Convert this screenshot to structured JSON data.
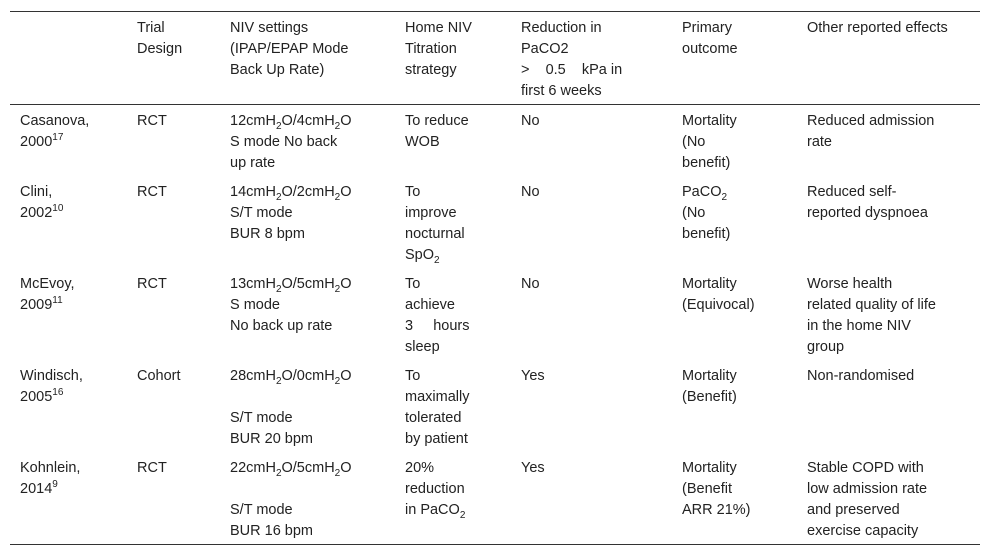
{
  "table": {
    "header": [
      [
        "Trial",
        "Design"
      ],
      [
        "NIV settings",
        "(IPAP/EPAP Mode",
        "Back Up Rate)"
      ],
      [
        "Home NIV",
        "Titration",
        "strategy"
      ],
      [
        "Reduction in",
        "PaCO2",
        ">    0.5    kPa in",
        "first 6 weeks"
      ],
      [
        "Primary",
        "outcome"
      ],
      [
        "Other reported effects"
      ]
    ],
    "rows": [
      [
        [
          [
            "Casanova,"
          ],
          [
            "2000",
            {
              "sup": "17"
            }
          ]
        ],
        [
          [
            "RCT"
          ]
        ],
        [
          [
            "12cmH",
            {
              "sub": "2"
            },
            "O/4cmH",
            {
              "sub": "2"
            },
            "O"
          ],
          [
            "S mode No back"
          ],
          [
            "up rate"
          ]
        ],
        [
          [
            "To reduce"
          ],
          [
            "WOB"
          ]
        ],
        [
          [
            "No"
          ]
        ],
        [
          [
            "Mortality"
          ],
          [
            "(No"
          ],
          [
            "benefit)"
          ]
        ],
        [
          [
            "Reduced admission"
          ],
          [
            "rate"
          ]
        ]
      ],
      [
        [
          [
            "Clini,"
          ],
          [
            "2002",
            {
              "sup": "10"
            }
          ]
        ],
        [
          [
            "RCT"
          ]
        ],
        [
          [
            "14cmH",
            {
              "sub": "2"
            },
            "O/2cmH",
            {
              "sub": "2"
            },
            "O"
          ],
          [
            "S/T mode"
          ],
          [
            "BUR 8 bpm"
          ]
        ],
        [
          [
            "To"
          ],
          [
            "improve"
          ],
          [
            "nocturnal"
          ],
          [
            "SpO",
            {
              "sub": "2"
            }
          ]
        ],
        [
          [
            "No"
          ]
        ],
        [
          [
            "PaCO",
            {
              "sub": "2"
            }
          ],
          [
            "(No"
          ],
          [
            "benefit)"
          ]
        ],
        [
          [
            "Reduced self-"
          ],
          [
            "reported dyspnoea"
          ]
        ]
      ],
      [
        [
          [
            "McEvoy,"
          ],
          [
            "2009",
            {
              "sup": "11"
            }
          ]
        ],
        [
          [
            "RCT"
          ]
        ],
        [
          [
            "13cmH",
            {
              "sub": "2"
            },
            "O/5cmH",
            {
              "sub": "2"
            },
            "O"
          ],
          [
            "S mode"
          ],
          [
            "No back up rate"
          ]
        ],
        [
          [
            "To"
          ],
          [
            "achieve"
          ],
          [
            "3     hours"
          ],
          [
            "sleep"
          ]
        ],
        [
          [
            "No"
          ]
        ],
        [
          [
            "Mortality"
          ],
          [
            "(Equivocal)"
          ]
        ],
        [
          [
            "Worse health"
          ],
          [
            "related quality of life"
          ],
          [
            "in the home NIV"
          ],
          [
            "group"
          ]
        ]
      ],
      [
        [
          [
            "Windisch,"
          ],
          [
            "2005",
            {
              "sup": "16"
            }
          ]
        ],
        [
          [
            "Cohort"
          ]
        ],
        [
          [
            "28cmH",
            {
              "sub": "2"
            },
            "O/0cmH",
            {
              "sub": "2"
            },
            "O"
          ],
          [],
          [
            "S/T mode"
          ],
          [
            "BUR 20 bpm"
          ]
        ],
        [
          [
            "To"
          ],
          [
            "maximally"
          ],
          [
            "tolerated"
          ],
          [
            "by patient"
          ]
        ],
        [
          [
            "Yes"
          ]
        ],
        [
          [
            "Mortality"
          ],
          [
            "(Benefit)"
          ]
        ],
        [
          [
            "Non-randomised"
          ]
        ]
      ],
      [
        [
          [
            "Kohnlein,"
          ],
          [
            "2014",
            {
              "sup": "9"
            }
          ]
        ],
        [
          [
            "RCT"
          ]
        ],
        [
          [
            "22cmH",
            {
              "sub": "2"
            },
            "O/5cmH",
            {
              "sub": "2"
            },
            "O"
          ],
          [],
          [
            "S/T mode"
          ],
          [
            "BUR 16 bpm"
          ]
        ],
        [
          [
            "20%"
          ],
          [
            "reduction"
          ],
          [
            "in PaCO",
            {
              "sub": "2"
            }
          ]
        ],
        [
          [
            "Yes"
          ]
        ],
        [
          [
            "Mortality"
          ],
          [
            "(Benefit"
          ],
          [
            "ARR 21%)"
          ]
        ],
        [
          [
            "Stable COPD with"
          ],
          [
            "low admission rate"
          ],
          [
            "and preserved"
          ],
          [
            "exercise capacity"
          ]
        ]
      ]
    ]
  }
}
